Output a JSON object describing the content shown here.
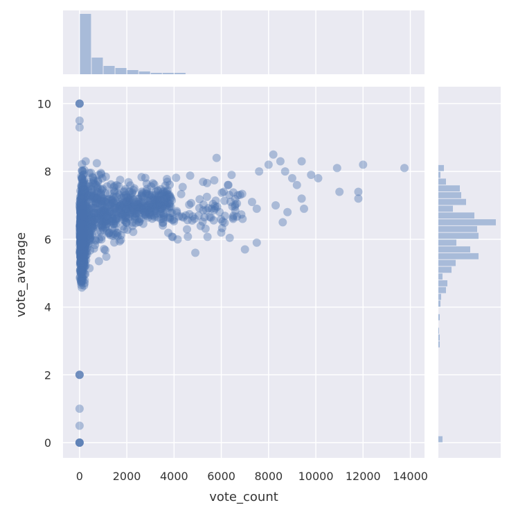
{
  "chart_data": {
    "type": "scatter",
    "title": "",
    "xlabel": "vote_count",
    "ylabel": "vote_average",
    "xlim": [
      -700,
      14600
    ],
    "ylim": [
      -0.45,
      10.5
    ],
    "x_ticks": [
      0,
      2000,
      4000,
      6000,
      8000,
      10000,
      12000,
      14000
    ],
    "x_tick_labels": [
      "0",
      "2000",
      "4000",
      "6000",
      "8000",
      "10000",
      "12000",
      "14000"
    ],
    "y_ticks": [
      0,
      2,
      4,
      6,
      8,
      10
    ],
    "y_tick_labels": [
      "0",
      "2",
      "4",
      "6",
      "8",
      "10"
    ],
    "grid": true,
    "style": "seaborn darkgrid jointplot",
    "colors": {
      "axes_bg": "#eaeaf2",
      "grid": "#ffffff",
      "point": "#4c72b0",
      "hist_bar": "#a8bbd9",
      "text": "#333333"
    },
    "point_alpha": 0.4,
    "notable_points": [
      {
        "x": 0,
        "y": 10
      },
      {
        "x": 0,
        "y": 9.5
      },
      {
        "x": 0,
        "y": 9.3
      },
      {
        "x": 0,
        "y": 2
      },
      {
        "x": 0,
        "y": 1
      },
      {
        "x": 0,
        "y": 0.5
      },
      {
        "x": 0,
        "y": 0
      },
      {
        "x": 13750,
        "y": 8.1
      },
      {
        "x": 12000,
        "y": 8.2
      },
      {
        "x": 10900,
        "y": 8.1
      },
      {
        "x": 11800,
        "y": 7.4
      },
      {
        "x": 11800,
        "y": 7.2
      },
      {
        "x": 11000,
        "y": 7.4
      },
      {
        "x": 9400,
        "y": 8.3
      },
      {
        "x": 9800,
        "y": 7.9
      },
      {
        "x": 10100,
        "y": 7.8
      },
      {
        "x": 8200,
        "y": 8.5
      },
      {
        "x": 8500,
        "y": 8.3
      },
      {
        "x": 8000,
        "y": 8.2
      },
      {
        "x": 8700,
        "y": 8.0
      },
      {
        "x": 9000,
        "y": 7.8
      },
      {
        "x": 9200,
        "y": 7.6
      },
      {
        "x": 9400,
        "y": 7.2
      },
      {
        "x": 9500,
        "y": 6.9
      },
      {
        "x": 8800,
        "y": 6.8
      },
      {
        "x": 8600,
        "y": 6.5
      },
      {
        "x": 8300,
        "y": 7.0
      },
      {
        "x": 7600,
        "y": 8.0
      },
      {
        "x": 7500,
        "y": 6.9
      },
      {
        "x": 7300,
        "y": 7.1
      },
      {
        "x": 7500,
        "y": 5.9
      },
      {
        "x": 7000,
        "y": 5.7
      },
      {
        "x": 6900,
        "y": 6.6
      },
      {
        "x": 4900,
        "y": 5.6
      },
      {
        "x": 6700,
        "y": 7.3
      },
      {
        "x": 6300,
        "y": 7.6
      },
      {
        "x": 5800,
        "y": 8.4
      },
      {
        "x": 6100,
        "y": 7.4
      },
      {
        "x": 6500,
        "y": 6.6
      }
    ],
    "top_histogram": {
      "axis": "vote_count",
      "bin_width": 500,
      "bins_start": 0,
      "relative_heights": [
        87,
        24,
        12,
        9,
        6,
        4,
        2,
        2,
        2,
        0,
        0,
        0,
        0,
        0,
        0,
        0,
        0,
        0,
        0,
        0,
        0,
        0,
        0,
        0,
        0,
        0,
        0,
        0
      ]
    },
    "right_histogram": {
      "axis": "vote_average",
      "bins": [
        {
          "y0": 0.0,
          "y1": 0.2,
          "w": 6
        },
        {
          "y0": 2.8,
          "y1": 3.0,
          "w": 2
        },
        {
          "y0": 3.0,
          "y1": 3.2,
          "w": 2
        },
        {
          "y0": 3.2,
          "y1": 3.4,
          "w": 1
        },
        {
          "y0": 3.6,
          "y1": 3.8,
          "w": 2
        },
        {
          "y0": 4.0,
          "y1": 4.2,
          "w": 3
        },
        {
          "y0": 4.2,
          "y1": 4.4,
          "w": 4
        },
        {
          "y0": 4.4,
          "y1": 4.6,
          "w": 11
        },
        {
          "y0": 4.6,
          "y1": 4.8,
          "w": 13
        },
        {
          "y0": 4.8,
          "y1": 5.0,
          "w": 6
        },
        {
          "y0": 5.0,
          "y1": 5.2,
          "w": 19
        },
        {
          "y0": 5.2,
          "y1": 5.4,
          "w": 25
        },
        {
          "y0": 5.4,
          "y1": 5.6,
          "w": 58
        },
        {
          "y0": 5.6,
          "y1": 5.8,
          "w": 46
        },
        {
          "y0": 5.8,
          "y1": 6.0,
          "w": 26
        },
        {
          "y0": 6.0,
          "y1": 6.2,
          "w": 58
        },
        {
          "y0": 6.2,
          "y1": 6.4,
          "w": 56
        },
        {
          "y0": 6.4,
          "y1": 6.6,
          "w": 83
        },
        {
          "y0": 6.6,
          "y1": 6.8,
          "w": 52
        },
        {
          "y0": 6.8,
          "y1": 7.0,
          "w": 21
        },
        {
          "y0": 7.0,
          "y1": 7.2,
          "w": 40
        },
        {
          "y0": 7.2,
          "y1": 7.4,
          "w": 33
        },
        {
          "y0": 7.4,
          "y1": 7.6,
          "w": 31
        },
        {
          "y0": 7.6,
          "y1": 7.8,
          "w": 11
        },
        {
          "y0": 7.8,
          "y1": 8.0,
          "w": 3
        },
        {
          "y0": 8.0,
          "y1": 8.2,
          "w": 8
        }
      ]
    }
  }
}
